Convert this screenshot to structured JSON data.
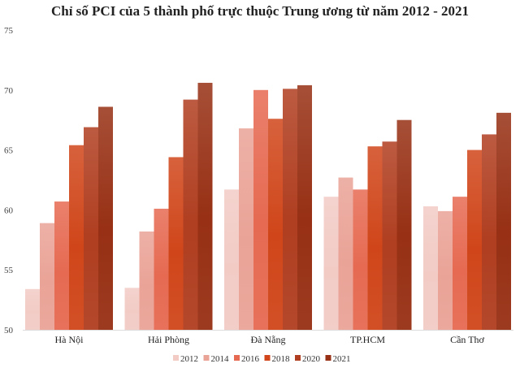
{
  "chart_data": {
    "type": "bar",
    "title": "Chỉ số PCI của 5 thành phố trực thuộc Trung ương từ năm 2012 - 2021",
    "xlabel": "",
    "ylabel": "",
    "ylim": [
      50,
      75
    ],
    "yticks": [
      50,
      55,
      60,
      65,
      70,
      75
    ],
    "categories": [
      "Hà Nội",
      "Hải Phòng",
      "Đà Nẵng",
      "TP.HCM",
      "Cần Thơ"
    ],
    "legend_position": "bottom",
    "grid": false,
    "series": [
      {
        "name": "2012",
        "color": "#f2cbc5",
        "values": [
          53.4,
          53.5,
          61.7,
          61.1,
          60.3
        ]
      },
      {
        "name": "2014",
        "color": "#eaa397",
        "values": [
          58.9,
          58.2,
          66.8,
          62.7,
          59.9
        ]
      },
      {
        "name": "2016",
        "color": "#e66a52",
        "values": [
          60.7,
          60.1,
          70.0,
          61.7,
          61.1
        ]
      },
      {
        "name": "2018",
        "color": "#d0461a",
        "values": [
          65.4,
          64.4,
          67.6,
          65.3,
          65.0
        ]
      },
      {
        "name": "2020",
        "color": "#b03e20",
        "values": [
          66.9,
          69.2,
          70.1,
          65.7,
          66.3
        ]
      },
      {
        "name": "2021",
        "color": "#973014",
        "values": [
          68.6,
          70.6,
          70.4,
          67.5,
          68.1
        ]
      }
    ]
  }
}
